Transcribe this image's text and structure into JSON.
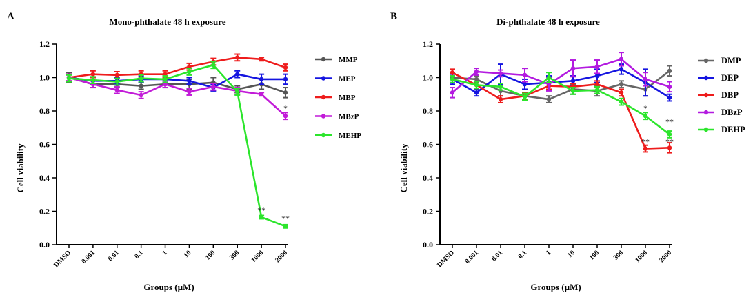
{
  "panels": [
    {
      "letter": "A",
      "title": "Mono-phthalate 48 h exposure",
      "ylabel": "Cell viability",
      "xlabel": "Groups (µM)"
    },
    {
      "letter": "B",
      "title": "Di-phthalate 48 h exposure",
      "ylabel": "Cell viability",
      "xlabel": "Groups (µM)"
    }
  ],
  "chart_data": [
    {
      "type": "line",
      "title": "Mono-phthalate 48 h exposure",
      "xlabel": "Groups (µM)",
      "ylabel": "Cell viability",
      "ylim": [
        0,
        1.2
      ],
      "yticks": [
        "0.0",
        "0.2",
        "0.4",
        "0.6",
        "0.8",
        "1.0",
        "1.2"
      ],
      "categories": [
        "DMSO",
        "0.001",
        "0.01",
        "0.1",
        "1",
        "10",
        "100",
        "300",
        "1000",
        "2000"
      ],
      "legend_position": "right",
      "series": [
        {
          "name": "MMP",
          "color": "#555555",
          "values": [
            1.0,
            0.96,
            0.96,
            0.95,
            0.96,
            0.96,
            0.97,
            0.93,
            0.96,
            0.91
          ],
          "errors": [
            0.03,
            0.02,
            0.02,
            0.02,
            0.02,
            0.03,
            0.03,
            0.02,
            0.03,
            0.03
          ]
        },
        {
          "name": "MEP",
          "color": "#1515e0",
          "values": [
            1.0,
            0.98,
            0.98,
            0.99,
            0.99,
            0.98,
            0.94,
            1.02,
            0.99,
            0.99
          ],
          "errors": [
            0.02,
            0.02,
            0.02,
            0.02,
            0.02,
            0.02,
            0.02,
            0.02,
            0.03,
            0.03
          ]
        },
        {
          "name": "MBP",
          "color": "#ee1c1c",
          "values": [
            1.0,
            1.02,
            1.015,
            1.02,
            1.02,
            1.065,
            1.095,
            1.12,
            1.11,
            1.06
          ],
          "errors": [
            0.02,
            0.02,
            0.02,
            0.02,
            0.02,
            0.02,
            0.02,
            0.02,
            0.01,
            0.02
          ]
        },
        {
          "name": "MBzP",
          "color": "#c21bd8",
          "values": [
            1.0,
            0.96,
            0.925,
            0.895,
            0.96,
            0.915,
            0.945,
            0.92,
            0.9,
            0.77
          ],
          "errors": [
            0.02,
            0.02,
            0.02,
            0.02,
            0.02,
            0.02,
            0.02,
            0.02,
            0.01,
            0.02
          ]
        },
        {
          "name": "MEHP",
          "color": "#2ce52c",
          "values": [
            0.995,
            0.985,
            0.975,
            0.995,
            0.99,
            1.035,
            1.075,
            0.915,
            0.165,
            0.11
          ],
          "errors": [
            0.02,
            0.02,
            0.02,
            0.02,
            0.02,
            0.02,
            0.02,
            0.02,
            0.01,
            0.01
          ]
        }
      ],
      "annotations": [
        {
          "text": "**",
          "category": "1000",
          "y": 0.19
        },
        {
          "text": "**",
          "category": "2000",
          "y": 0.14
        },
        {
          "text": "*",
          "category": "2000",
          "y": 0.8
        }
      ]
    },
    {
      "type": "line",
      "title": "Di-phthalate 48 h exposure",
      "xlabel": "Groups (µM)",
      "ylabel": "Cell viability",
      "ylim": [
        0,
        1.2
      ],
      "yticks": [
        "0.0",
        "0.2",
        "0.4",
        "0.6",
        "0.8",
        "1.0",
        "1.2"
      ],
      "categories": [
        "DMSO",
        "0.001",
        "0.01",
        "0.1",
        "1",
        "10",
        "100",
        "300",
        "1000",
        "2000"
      ],
      "legend_position": "right",
      "series": [
        {
          "name": "DMP",
          "color": "#666666",
          "values": [
            1.0,
            0.99,
            0.92,
            0.89,
            0.87,
            0.93,
            0.92,
            0.96,
            0.93,
            1.04
          ],
          "errors": [
            0.03,
            0.02,
            0.03,
            0.02,
            0.02,
            0.03,
            0.03,
            0.02,
            0.04,
            0.03
          ]
        },
        {
          "name": "DEP",
          "color": "#1515e0",
          "values": [
            0.99,
            0.91,
            1.02,
            0.96,
            0.97,
            0.98,
            1.01,
            1.05,
            0.97,
            0.88
          ],
          "errors": [
            0.03,
            0.02,
            0.06,
            0.03,
            0.04,
            0.03,
            0.04,
            0.03,
            0.08,
            0.02
          ]
        },
        {
          "name": "DBP",
          "color": "#ee1c1c",
          "values": [
            1.03,
            0.955,
            0.87,
            0.89,
            0.95,
            0.945,
            0.96,
            0.91,
            0.575,
            0.58
          ],
          "errors": [
            0.02,
            0.02,
            0.02,
            0.02,
            0.02,
            0.02,
            0.02,
            0.02,
            0.02,
            0.03
          ]
        },
        {
          "name": "DBzP",
          "color": "#b31ae0",
          "values": [
            0.91,
            1.035,
            1.025,
            1.015,
            0.96,
            1.055,
            1.065,
            1.11,
            0.99,
            0.945
          ],
          "errors": [
            0.03,
            0.02,
            0.02,
            0.04,
            0.04,
            0.05,
            0.04,
            0.04,
            0.04,
            0.03
          ]
        },
        {
          "name": "DEHP",
          "color": "#2ce52c",
          "values": [
            0.99,
            0.955,
            0.945,
            0.885,
            1.0,
            0.92,
            0.925,
            0.855,
            0.77,
            0.66
          ],
          "errors": [
            0.02,
            0.02,
            0.02,
            0.02,
            0.03,
            0.02,
            0.02,
            0.02,
            0.02,
            0.02
          ]
        }
      ],
      "annotations": [
        {
          "text": "*",
          "category": "1000",
          "y": 0.8
        },
        {
          "text": "**",
          "category": "2000",
          "y": 0.72
        },
        {
          "text": "**",
          "category": "1000",
          "y": 0.6
        },
        {
          "text": "**",
          "category": "2000",
          "y": 0.6
        }
      ]
    }
  ]
}
